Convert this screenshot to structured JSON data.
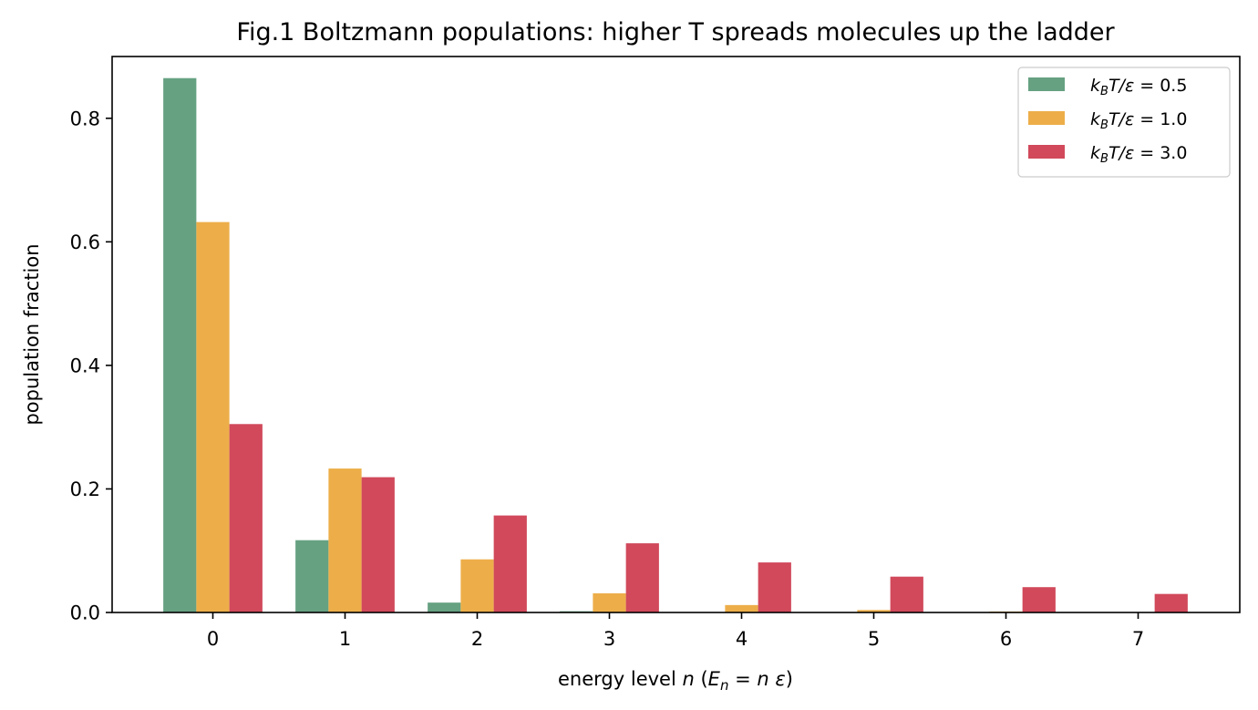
{
  "chart_data": {
    "type": "bar",
    "title": "Fig.1 Boltzmann populations: higher T spreads molecules up the ladder",
    "xlabel": {
      "prefix": "energy level ",
      "var": "n",
      "paren_open": "  (",
      "lhs": "E",
      "lhs_sub": "n",
      "eq": " = ",
      "rhs_n": "n",
      "rhs_eps": " ε",
      "paren_close": ")"
    },
    "ylabel": "population fraction",
    "categories": [
      "0",
      "1",
      "2",
      "3",
      "4",
      "5",
      "6",
      "7"
    ],
    "ylim": [
      0,
      0.9
    ],
    "yticks": [
      0.0,
      0.2,
      0.4,
      0.6,
      0.8
    ],
    "ytick_labels": [
      "0.0",
      "0.2",
      "0.4",
      "0.6",
      "0.8"
    ],
    "grid": false,
    "legend_position": "top-right",
    "series": [
      {
        "name": "k_BT/ε = 0.5",
        "legend": {
          "k": "k",
          "sub": "B",
          "rest": "T/ε",
          "value": " = 0.5"
        },
        "color": "#66a182",
        "values": [
          0.865,
          0.117,
          0.016,
          0.002,
          0.0003,
          5e-05,
          0.0,
          0.0
        ]
      },
      {
        "name": "k_BT/ε = 1.0",
        "legend": {
          "k": "k",
          "sub": "B",
          "rest": "T/ε",
          "value": " = 1.0"
        },
        "color": "#edae49",
        "values": [
          0.632,
          0.233,
          0.086,
          0.031,
          0.012,
          0.004,
          0.0016,
          0.0006
        ]
      },
      {
        "name": "k_BT/ε = 3.0",
        "legend": {
          "k": "k",
          "sub": "B",
          "rest": "T/ε",
          "value": " = 3.0"
        },
        "color": "#d1495b",
        "values": [
          0.305,
          0.219,
          0.157,
          0.112,
          0.081,
          0.058,
          0.041,
          0.03
        ]
      }
    ]
  }
}
